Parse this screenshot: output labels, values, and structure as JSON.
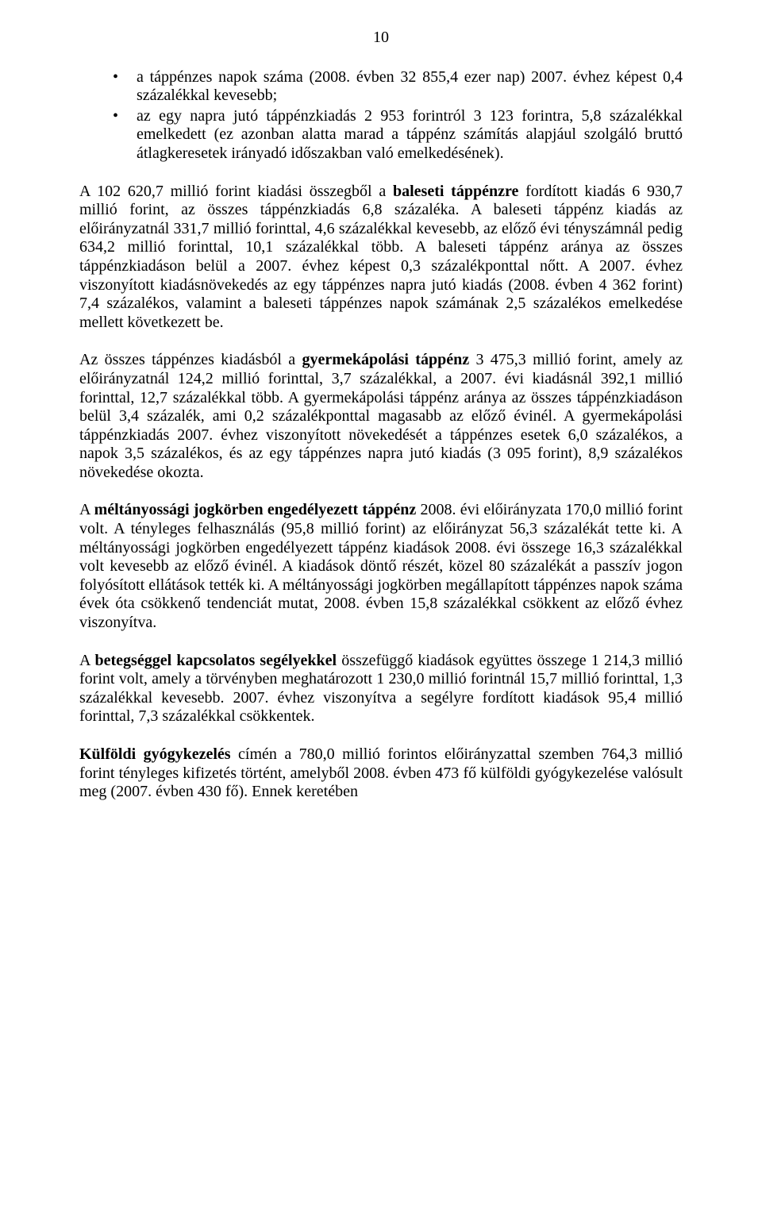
{
  "page_number": "10",
  "colors": {
    "background": "#ffffff",
    "text": "#000000"
  },
  "typography": {
    "font_family": "Times New Roman",
    "font_size_pt": 15,
    "line_height": 1.18,
    "align": "justify"
  },
  "bullets": [
    {
      "text": "a táppénzes napok száma (2008. évben 32 855,4 ezer nap) 2007. évhez képest 0,4 százalékkal kevesebb;"
    },
    {
      "text": "az egy napra jutó táppénzkiadás 2 953 forintról 3 123 forintra, 5,8 százalékkal emelkedett (ez azonban alatta marad a táppénz számítás alapjául szolgáló bruttó átlagkeresetek irányadó időszakban való emelkedésének)."
    }
  ],
  "paragraphs": [
    {
      "runs": [
        {
          "t": "A 102 620,7 millió forint kiadási összegből a "
        },
        {
          "t": "baleseti táppénzre",
          "b": true
        },
        {
          "t": " fordított kiadás 6 930,7 millió forint, az összes táppénzkiadás 6,8 százaléka. A baleseti táppénz kiadás az előirányzatnál 331,7 millió forinttal, 4,6 százalékkal kevesebb, az előző évi tényszámnál pedig 634,2 millió forinttal, 10,1 százalékkal több. A baleseti táppénz aránya az összes táppénzkiadáson belül a 2007. évhez képest 0,3 százalékponttal nőtt. A 2007. évhez viszonyított kiadásnövekedés az egy táppénzes napra jutó kiadás (2008. évben 4 362 forint) 7,4 százalékos, valamint a baleseti táppénzes napok számának 2,5 százalékos emelkedése mellett következett be."
        }
      ]
    },
    {
      "runs": [
        {
          "t": "Az összes táppénzes kiadásból a "
        },
        {
          "t": "gyermekápolási táppénz",
          "b": true
        },
        {
          "t": " 3 475,3 millió forint, amely az előirányzatnál 124,2 millió forinttal, 3,7 százalékkal, a 2007. évi kiadásnál 392,1 millió forinttal, 12,7 százalékkal több. A gyermekápolási táppénz aránya az összes táppénzkiadáson belül 3,4 százalék, ami 0,2 százalékponttal magasabb az előző évinél. A gyermekápolási táppénzkiadás 2007. évhez viszonyított növekedését a táppénzes esetek 6,0 százalékos, a napok 3,5 százalékos, és az egy táppénzes napra jutó kiadás (3 095 forint), 8,9 százalékos növekedése okozta."
        }
      ]
    },
    {
      "runs": [
        {
          "t": "A "
        },
        {
          "t": "méltányossági jogkörben engedélyezett táppénz",
          "b": true
        },
        {
          "t": " 2008. évi előirányzata 170,0 millió forint volt. A tényleges felhasználás (95,8 millió forint) az előirányzat 56,3 százalékát tette ki. A méltányossági jogkörben engedélyezett táppénz kiadások 2008. évi összege 16,3 százalékkal volt kevesebb az előző évinél. A kiadások döntő részét, közel 80 százalékát a passzív jogon folyósított ellátások tették ki. A méltányossági jogkörben megállapított táppénzes napok száma évek óta csökkenő tendenciát mutat, 2008. évben 15,8 százalékkal csökkent az előző évhez viszonyítva."
        }
      ]
    },
    {
      "runs": [
        {
          "t": "A "
        },
        {
          "t": "betegséggel kapcsolatos segélyekkel",
          "b": true
        },
        {
          "t": " összefüggő kiadások együttes összege 1 214,3 millió forint volt, amely a törvényben meghatározott 1 230,0 millió forintnál 15,7 millió forinttal, 1,3 százalékkal kevesebb. 2007. évhez viszonyítva a segélyre fordított kiadások 95,4 millió forinttal, 7,3 százalékkal csökkentek."
        }
      ]
    },
    {
      "runs": [
        {
          "t": "Külföldi gyógykezelés",
          "b": true
        },
        {
          "t": " címén a 780,0 millió forintos előirányzattal szemben 764,3 millió forint tényleges kifizetés történt, amelyből 2008. évben 473 fő külföldi gyógykezelése valósult meg (2007. évben 430 fő). Ennek keretében"
        }
      ]
    }
  ]
}
